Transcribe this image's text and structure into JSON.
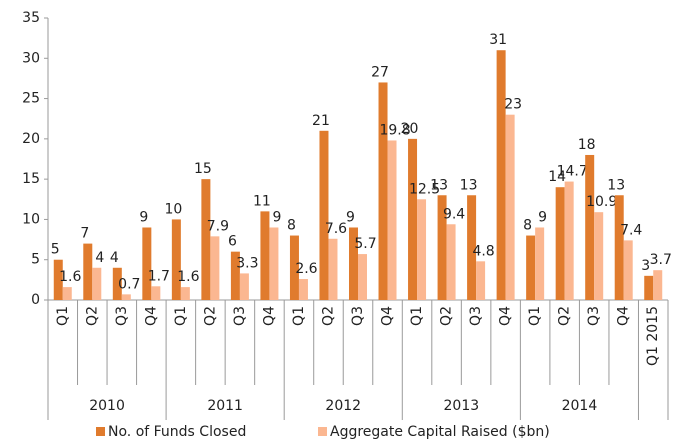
{
  "chart_data": {
    "type": "bar",
    "categories": [
      "Q1",
      "Q2",
      "Q3",
      "Q4",
      "Q1",
      "Q2",
      "Q3",
      "Q4",
      "Q1",
      "Q2",
      "Q3",
      "Q4",
      "Q1",
      "Q2",
      "Q3",
      "Q4",
      "Q1",
      "Q2",
      "Q3",
      "Q4",
      "Q1 2015"
    ],
    "category_groups": [
      "2010",
      "2010",
      "2010",
      "2010",
      "2011",
      "2011",
      "2011",
      "2011",
      "2012",
      "2012",
      "2012",
      "2012",
      "2013",
      "2013",
      "2013",
      "2013",
      "2014",
      "2014",
      "2014",
      "2014",
      null
    ],
    "series": [
      {
        "name": "No. of Funds Closed",
        "color": "#e07b2d",
        "values": [
          5,
          7,
          4,
          9,
          10,
          15,
          6,
          11,
          8,
          21,
          9,
          27,
          20,
          13,
          13,
          31,
          8,
          14,
          18,
          13,
          3
        ]
      },
      {
        "name": "Aggregate Capital Raised ($bn)",
        "color": "#fbb791",
        "values": [
          1.6,
          4,
          0.7,
          1.7,
          1.6,
          7.9,
          3.3,
          9,
          2.6,
          7.6,
          5.7,
          19.8,
          12.5,
          9.4,
          4.8,
          23,
          9,
          14.7,
          10.9,
          7.4,
          3.7
        ]
      }
    ],
    "ylim": [
      0,
      35
    ],
    "yticks": [
      0,
      5,
      10,
      15,
      20,
      25,
      30,
      35
    ],
    "grid": false,
    "legend": "bottom"
  }
}
